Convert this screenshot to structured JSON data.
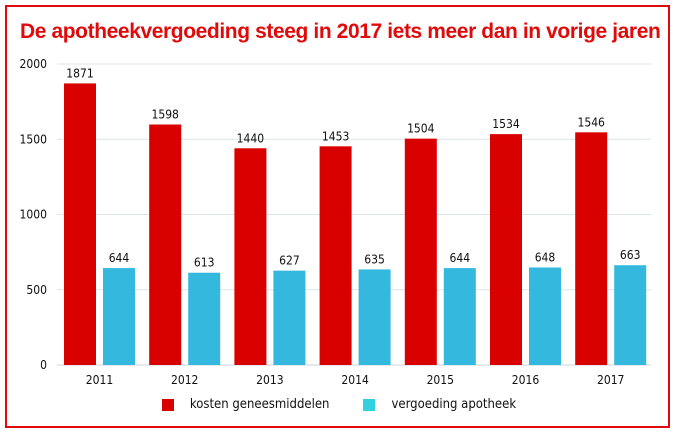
{
  "chart_data": {
    "type": "bar",
    "title": "De apotheekvergoeding steeg in 2017 iets meer dan in vorige jaren",
    "xlabel": "",
    "ylabel": "",
    "ylim": [
      0,
      2000
    ],
    "yticks": [
      "0",
      "500",
      "1000",
      "1500",
      "2000"
    ],
    "ytick_values": [
      0,
      500,
      1000,
      1500,
      2000
    ],
    "grid": true,
    "legend_position": "bottom",
    "categories": [
      "2011",
      "2012",
      "2013",
      "2014",
      "2015",
      "2016",
      "2017"
    ],
    "series": [
      {
        "name": "kosten geneesmiddelen",
        "color": "#d90000",
        "values": [
          1871,
          1598,
          1440,
          1453,
          1504,
          1534,
          1546
        ]
      },
      {
        "name": "vergoeding apotheek",
        "color": "#35b8dd",
        "values": [
          644,
          613,
          627,
          635,
          644,
          648,
          663
        ]
      }
    ]
  },
  "legend": {
    "items": [
      {
        "label": "kosten geneesmiddelen",
        "color": "#d90000"
      },
      {
        "label": "vergoeding apotheek",
        "color": "#35d0e0"
      }
    ]
  }
}
